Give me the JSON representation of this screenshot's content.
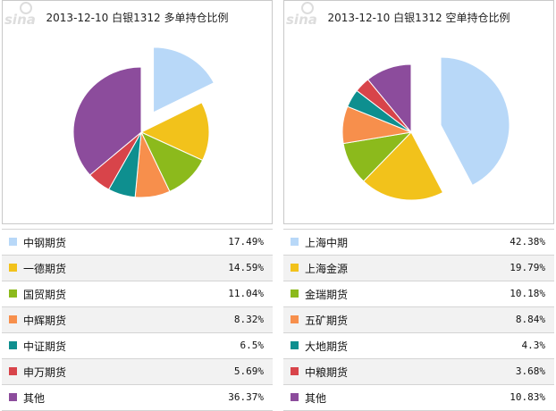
{
  "colors": {
    "series": [
      "#b8d8f8",
      "#f2c21b",
      "#8cba1c",
      "#f78f4c",
      "#0e8f8f",
      "#d8444a",
      "#8c4c9c"
    ]
  },
  "chart_data": [
    {
      "type": "pie",
      "title": "2013-12-10 白银1312 多单持仓比例",
      "categories": [
        "中钢期货",
        "一德期货",
        "国贸期货",
        "中辉期货",
        "中证期货",
        "申万期货",
        "其他"
      ],
      "values": [
        17.49,
        14.59,
        11.04,
        8.32,
        6.5,
        5.69,
        36.37
      ],
      "labels": [
        "17.49%",
        "14.59%",
        "11.04%",
        "8.32%",
        "6.5%",
        "5.69%",
        "36.37%"
      ],
      "exploded_index": 0,
      "legend": "bottom"
    },
    {
      "type": "pie",
      "title": "2013-12-10 白银1312 空单持仓比例",
      "categories": [
        "上海中期",
        "上海金源",
        "金瑞期货",
        "五矿期货",
        "大地期货",
        "中粮期货",
        "其他"
      ],
      "values": [
        42.38,
        19.79,
        10.18,
        8.84,
        4.3,
        3.68,
        10.83
      ],
      "labels": [
        "42.38%",
        "19.79%",
        "10.18%",
        "8.84%",
        "4.3%",
        "3.68%",
        "10.83%"
      ],
      "exploded_index": 0,
      "legend": "bottom"
    }
  ],
  "watermark": "sina"
}
